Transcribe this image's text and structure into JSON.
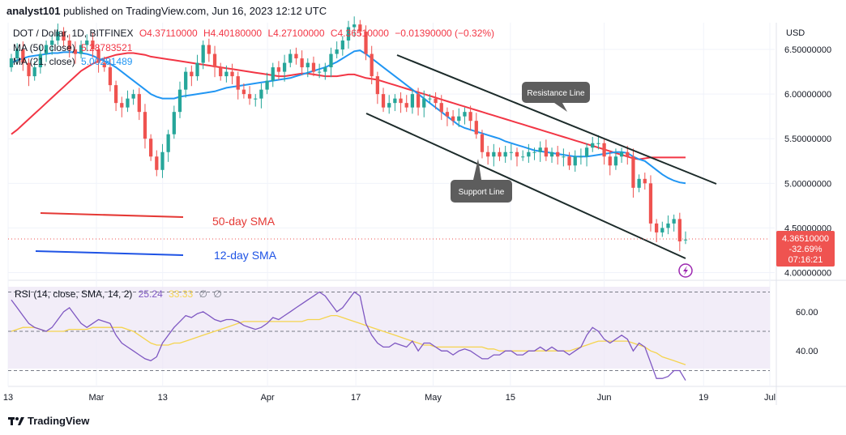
{
  "header": {
    "author": "analyst101",
    "rest": " published on TradingView.com, Jun 16, 2023 12:12 UTC"
  },
  "legend": {
    "symbol": "DOT / Dollar, 1D, BITFINEX",
    "open": "O4.37110000",
    "high": "H4.40180000",
    "low": "L4.27100000",
    "close": "C4.36510000",
    "change": "−0.01390000 (−0.32%)",
    "ma50_label": "MA (50, close)",
    "ma50_value": "5.28783521",
    "ma21_label": "MA (21, close)",
    "ma21_value": "5.00281489"
  },
  "rsi_legend": {
    "label": "RSI (14, close, SMA, 14, 2)",
    "rsi_value": "25.24",
    "sma_value": "33.33",
    "extra1": "∅",
    "extra2": "∅"
  },
  "footer": {
    "brand": "TradingView"
  },
  "chart_data": {
    "type": "candlestick",
    "price_axis": {
      "currency": "USD",
      "range": [
        3.95,
        6.8
      ],
      "ticks": [
        "6.50000000",
        "6.00000000",
        "5.50000000",
        "5.00000000",
        "4.50000000",
        "4.00000000"
      ],
      "tick_values": [
        6.5,
        6.0,
        5.5,
        5.0,
        4.5,
        4.0
      ]
    },
    "rsi_axis": {
      "range": [
        24,
        76
      ],
      "ticks": [
        "60.00",
        "40.00"
      ],
      "tick_values": [
        60,
        40
      ],
      "bands": [
        70,
        50,
        30
      ]
    },
    "time_axis": {
      "start": "2023-02-13",
      "end": "2023-07-01",
      "ticks": [
        {
          "label": "13",
          "date": "2023-02-13"
        },
        {
          "label": "Mar",
          "date": "2023-03-01"
        },
        {
          "label": "13",
          "date": "2023-03-13"
        },
        {
          "label": "Apr",
          "date": "2023-04-01"
        },
        {
          "label": "17",
          "date": "2023-04-17"
        },
        {
          "label": "May",
          "date": "2023-05-01"
        },
        {
          "label": "15",
          "date": "2023-05-15"
        },
        {
          "label": "Jun",
          "date": "2023-06-01"
        },
        {
          "label": "19",
          "date": "2023-06-19"
        },
        {
          "label": "Jul",
          "date": "2023-07-01"
        }
      ]
    },
    "close_prices": [
      6.4,
      6.5,
      6.35,
      6.2,
      6.3,
      6.45,
      6.55,
      6.6,
      6.7,
      6.6,
      6.5,
      6.45,
      6.55,
      6.6,
      6.5,
      6.35,
      6.3,
      6.1,
      5.9,
      5.85,
      5.95,
      6.0,
      5.8,
      5.5,
      5.3,
      5.15,
      5.35,
      5.55,
      5.8,
      6.05,
      6.25,
      6.2,
      6.35,
      6.55,
      6.45,
      6.3,
      6.2,
      6.25,
      6.2,
      6.05,
      6.0,
      5.95,
      5.95,
      6.05,
      6.15,
      6.3,
      6.25,
      6.35,
      6.45,
      6.4,
      6.3,
      6.35,
      6.25,
      6.25,
      6.3,
      6.45,
      6.5,
      6.6,
      6.75,
      6.78,
      6.7,
      6.45,
      6.2,
      6.0,
      5.85,
      5.9,
      5.95,
      5.9,
      5.85,
      6.0,
      5.85,
      5.95,
      5.95,
      5.9,
      5.8,
      5.75,
      5.7,
      5.75,
      5.8,
      5.7,
      5.55,
      5.35,
      5.3,
      5.35,
      5.3,
      5.35,
      5.35,
      5.3,
      5.3,
      5.35,
      5.35,
      5.4,
      5.3,
      5.35,
      5.3,
      5.3,
      5.2,
      5.3,
      5.3,
      5.4,
      5.45,
      5.45,
      5.3,
      5.2,
      5.3,
      5.35,
      5.3,
      4.95,
      5.05,
      5.0,
      4.55,
      4.45,
      4.5,
      4.55,
      4.6,
      4.35,
      4.37
    ],
    "open_prices": [
      6.3,
      6.4,
      6.5,
      6.35,
      6.2,
      6.3,
      6.45,
      6.55,
      6.6,
      6.7,
      6.6,
      6.5,
      6.45,
      6.55,
      6.6,
      6.5,
      6.35,
      6.3,
      6.1,
      5.9,
      5.85,
      5.95,
      6.0,
      5.8,
      5.5,
      5.3,
      5.15,
      5.35,
      5.55,
      5.8,
      6.05,
      6.25,
      6.2,
      6.35,
      6.55,
      6.45,
      6.3,
      6.2,
      6.25,
      6.2,
      6.05,
      6.0,
      5.95,
      5.95,
      6.05,
      6.15,
      6.3,
      6.25,
      6.35,
      6.45,
      6.4,
      6.3,
      6.35,
      6.25,
      6.25,
      6.3,
      6.45,
      6.5,
      6.6,
      6.75,
      6.78,
      6.7,
      6.45,
      6.2,
      6.0,
      5.85,
      5.9,
      5.95,
      5.9,
      5.85,
      6.0,
      5.85,
      5.95,
      5.95,
      5.9,
      5.8,
      5.75,
      5.7,
      5.75,
      5.8,
      5.7,
      5.55,
      5.35,
      5.3,
      5.35,
      5.3,
      5.35,
      5.35,
      5.3,
      5.3,
      5.35,
      5.35,
      5.4,
      5.3,
      5.35,
      5.3,
      5.3,
      5.2,
      5.3,
      5.3,
      5.4,
      5.45,
      5.45,
      5.3,
      5.2,
      5.3,
      5.35,
      5.3,
      4.95,
      5.05,
      5.0,
      4.55,
      4.45,
      4.5,
      4.55,
      4.6,
      4.37
    ],
    "ma50": [
      5.55,
      5.6,
      5.66,
      5.72,
      5.78,
      5.84,
      5.9,
      5.96,
      6.02,
      6.08,
      6.14,
      6.2,
      6.26,
      6.3,
      6.34,
      6.37,
      6.4,
      6.42,
      6.44,
      6.45,
      6.46,
      6.46,
      6.45,
      6.44,
      6.42,
      6.41,
      6.4,
      6.39,
      6.38,
      6.37,
      6.36,
      6.35,
      6.34,
      6.33,
      6.32,
      6.31,
      6.3,
      6.29,
      6.28,
      6.27,
      6.26,
      6.25,
      6.24,
      6.23,
      6.22,
      6.21,
      6.2,
      6.2,
      6.21,
      6.22,
      6.23,
      6.23,
      6.22,
      6.21,
      6.2,
      6.2,
      6.2,
      6.21,
      6.22,
      6.22,
      6.2,
      6.18,
      6.17,
      6.16,
      6.14,
      6.12,
      6.1,
      6.08,
      6.06,
      6.04,
      6.02,
      6.0,
      5.98,
      5.96,
      5.94,
      5.92,
      5.9,
      5.88,
      5.86,
      5.84,
      5.82,
      5.8,
      5.78,
      5.76,
      5.74,
      5.72,
      5.7,
      5.68,
      5.66,
      5.64,
      5.62,
      5.6,
      5.58,
      5.56,
      5.54,
      5.52,
      5.5,
      5.48,
      5.46,
      5.44,
      5.42,
      5.4,
      5.38,
      5.36,
      5.34,
      5.32,
      5.3,
      5.28,
      5.27,
      5.28,
      5.29,
      5.29,
      5.29,
      5.29,
      5.29,
      5.29,
      5.29
    ],
    "ma21": [
      6.35,
      6.38,
      6.4,
      6.42,
      6.43,
      6.44,
      6.45,
      6.46,
      6.46,
      6.47,
      6.47,
      6.47,
      6.46,
      6.45,
      6.43,
      6.4,
      6.37,
      6.34,
      6.3,
      6.25,
      6.2,
      6.15,
      6.1,
      6.05,
      6.0,
      5.97,
      5.95,
      5.95,
      5.95,
      5.97,
      5.98,
      5.99,
      6.0,
      6.01,
      6.02,
      6.03,
      6.05,
      6.07,
      6.08,
      6.09,
      6.1,
      6.11,
      6.12,
      6.13,
      6.14,
      6.15,
      6.16,
      6.17,
      6.18,
      6.2,
      6.22,
      6.24,
      6.26,
      6.28,
      6.3,
      6.33,
      6.36,
      6.4,
      6.44,
      6.48,
      6.49,
      6.45,
      6.4,
      6.35,
      6.3,
      6.25,
      6.2,
      6.15,
      6.1,
      6.05,
      6.0,
      5.95,
      5.9,
      5.85,
      5.8,
      5.75,
      5.7,
      5.65,
      5.62,
      5.6,
      5.58,
      5.56,
      5.54,
      5.52,
      5.5,
      5.47,
      5.45,
      5.43,
      5.41,
      5.39,
      5.37,
      5.36,
      5.35,
      5.34,
      5.33,
      5.32,
      5.31,
      5.3,
      5.3,
      5.3,
      5.31,
      5.32,
      5.33,
      5.34,
      5.35,
      5.35,
      5.34,
      5.3,
      5.27,
      5.25,
      5.2,
      5.15,
      5.1,
      5.06,
      5.03,
      5.01,
      5.0
    ],
    "rsi": [
      66,
      62,
      58,
      54,
      52,
      51,
      50,
      52,
      56,
      60,
      62,
      58,
      54,
      52,
      54,
      56,
      55,
      54,
      48,
      44,
      42,
      40,
      38,
      36,
      35,
      37,
      44,
      48,
      52,
      55,
      58,
      57,
      59,
      60,
      58,
      56,
      55,
      56,
      56,
      55,
      53,
      52,
      51,
      52,
      54,
      57,
      56,
      58,
      60,
      62,
      64,
      66,
      68,
      70,
      68,
      64,
      60,
      62,
      66,
      70,
      68,
      54,
      48,
      44,
      42,
      42,
      44,
      43,
      42,
      45,
      40,
      44,
      44,
      42,
      40,
      40,
      38,
      40,
      41,
      40,
      38,
      36,
      36,
      38,
      38,
      40,
      40,
      38,
      38,
      40,
      40,
      42,
      40,
      42,
      40,
      40,
      38,
      40,
      42,
      48,
      52,
      50,
      46,
      44,
      46,
      48,
      46,
      40,
      44,
      42,
      34,
      26,
      26,
      27,
      30,
      30,
      25
    ],
    "rsi_sma": [
      50,
      51,
      52,
      52,
      52,
      51,
      50,
      50,
      50,
      50,
      51,
      51,
      51,
      51,
      52,
      52,
      52,
      52,
      52,
      52,
      51,
      50,
      48,
      46,
      44,
      43,
      43,
      43,
      44,
      44,
      45,
      46,
      47,
      48,
      49,
      50,
      51,
      52,
      53,
      54,
      55,
      55,
      55,
      55,
      55,
      55,
      55,
      55,
      55,
      55,
      55,
      56,
      56,
      56,
      57,
      58,
      58,
      57,
      56,
      55,
      54,
      53,
      52,
      51,
      50,
      49,
      48,
      47,
      46,
      45,
      44,
      43,
      43,
      42,
      42,
      42,
      42,
      42,
      42,
      42,
      42,
      42,
      41,
      41,
      40,
      40,
      40,
      40,
      40,
      40,
      40,
      40,
      40,
      40,
      40,
      40,
      40,
      41,
      42,
      43,
      44,
      45,
      45,
      45,
      45,
      45,
      45,
      44,
      43,
      42,
      40,
      39,
      37,
      36,
      35,
      34,
      33
    ],
    "annotations": {
      "resistance_line": "Resistance Line",
      "support_line": "Support Line",
      "sma50_note": "50-day SMA",
      "sma12_note": "12-day SMA"
    },
    "current_price_label": {
      "price": "4.36510000",
      "change": "-32.69%",
      "countdown": "07:16:21"
    },
    "colors": {
      "up": "#26a69a",
      "down": "#ef5350",
      "ma50": "#f23645",
      "ma21": "#2196f3",
      "rsi": "#7e57c2",
      "rsi_sma": "#f5d44e",
      "channel": "#1c2b2a",
      "callout": "#5d5d5d",
      "rsi_band": "#ede7f6"
    }
  }
}
